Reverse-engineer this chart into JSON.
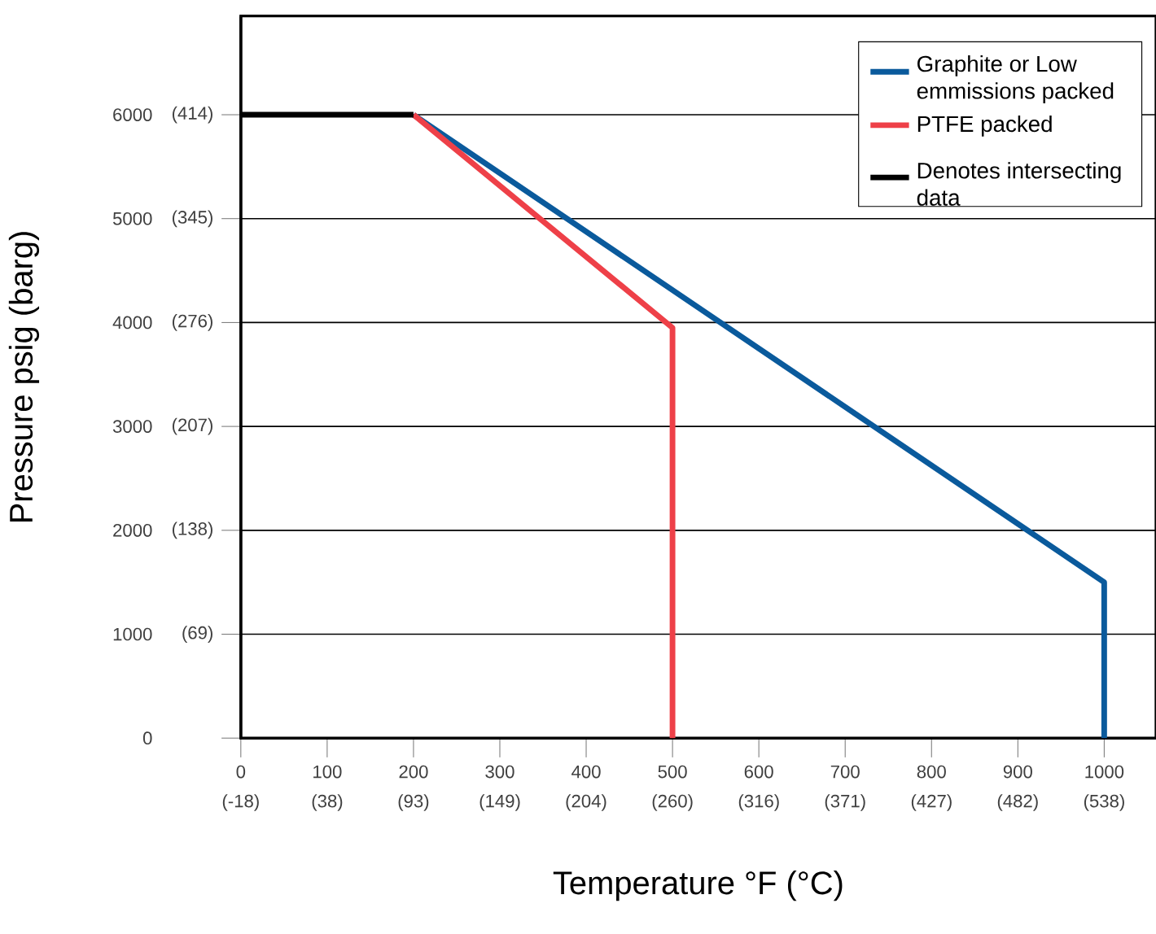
{
  "chart_data": {
    "type": "line",
    "xlabel": "Temperature °F (°C)",
    "ylabel": "Pressure psig (barg)",
    "xlim": [
      0,
      1060
    ],
    "ylim": [
      0,
      6950
    ],
    "xticks": [
      0,
      100,
      200,
      300,
      400,
      500,
      600,
      700,
      800,
      900,
      1000
    ],
    "yticks": [
      0,
      1000,
      2000,
      3000,
      4000,
      5000,
      6000
    ],
    "x2lim": [
      -17.8,
      571.1
    ],
    "x2ticks": [
      {
        "value": -17.8,
        "label": "(-18)"
      },
      {
        "value": 37.8,
        "label": "(38)"
      },
      {
        "value": 93.3,
        "label": "(93)"
      },
      {
        "value": 148.9,
        "label": "(149)"
      },
      {
        "value": 204.4,
        "label": "(204)"
      },
      {
        "value": 260,
        "label": "(260)"
      },
      {
        "value": 315.6,
        "label": "(316)"
      },
      {
        "value": 371.1,
        "label": "(371)"
      },
      {
        "value": 426.7,
        "label": "(427)"
      },
      {
        "value": 482.2,
        "label": "(482)"
      },
      {
        "value": 537.8,
        "label": "(538)"
      }
    ],
    "y2lim": [
      0,
      479.2
    ],
    "y2ticks": [
      {
        "value": 68.9,
        "label": "(69)"
      },
      {
        "value": 137.9,
        "label": "(138)"
      },
      {
        "value": 206.8,
        "label": "(207)"
      },
      {
        "value": 275.8,
        "label": "(276)"
      },
      {
        "value": 344.7,
        "label": "(345)"
      },
      {
        "value": 413.7,
        "label": "(414)"
      }
    ],
    "grid": "y",
    "legend": "top right",
    "line_style": "solid",
    "marker": "none",
    "series": [
      {
        "name": "Graphite or Low emmissions packed",
        "color": "#0a5a9c",
        "x": [
          200,
          1000,
          1000
        ],
        "values": [
          6000,
          1500,
          0
        ]
      },
      {
        "name": "PTFE packed",
        "color": "#ee4048",
        "x": [
          200,
          500,
          500
        ],
        "values": [
          6000,
          3950,
          0
        ]
      },
      {
        "name": "Denotes intersecting data",
        "color": "#000000",
        "x": [
          0,
          200
        ],
        "values": [
          6000,
          6000
        ]
      }
    ]
  }
}
